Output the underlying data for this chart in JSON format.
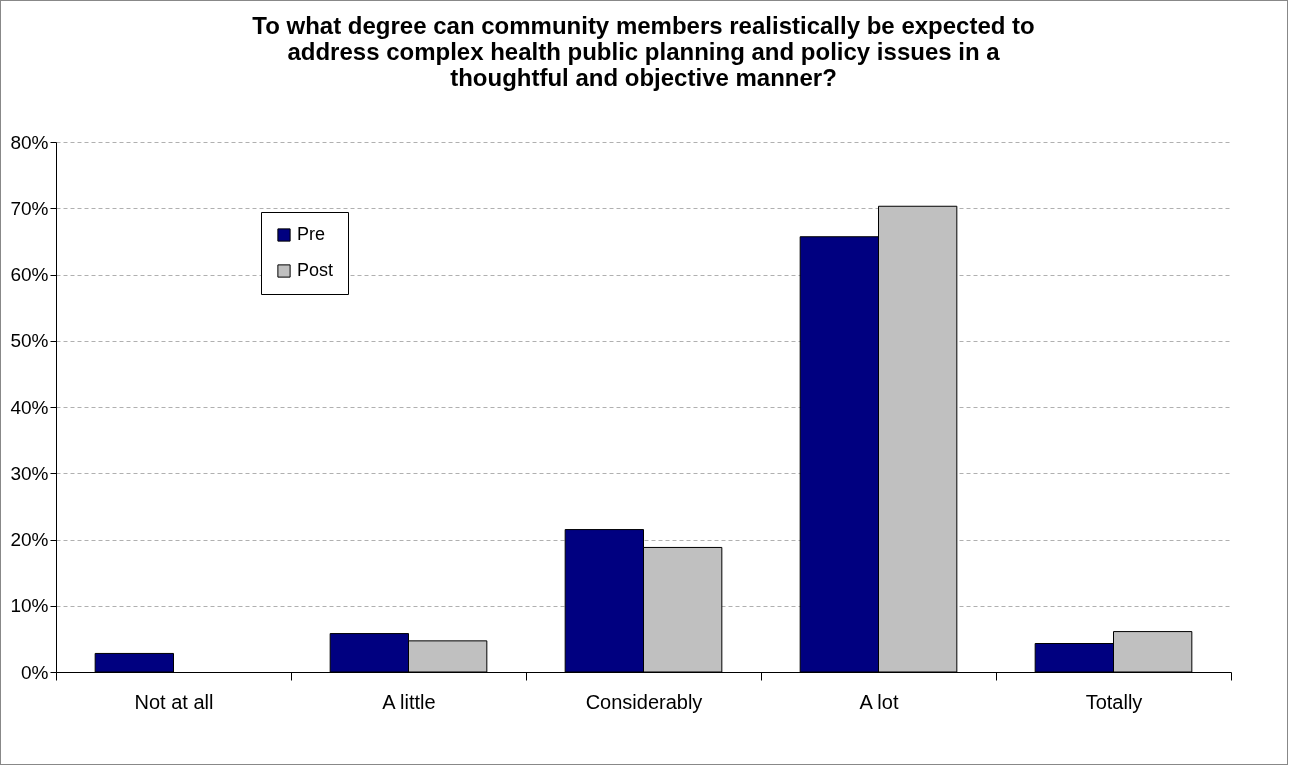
{
  "chart_data": {
    "type": "bar",
    "title": "To what degree can community members realistically be expected to address complex health public planning and policy issues in a thoughtful and objective manner?",
    "categories": [
      "Not at all",
      "A little",
      "Considerably",
      "A lot",
      "Totally"
    ],
    "series": [
      {
        "name": "Pre",
        "color": "#000080",
        "values": [
          2.8,
          5.8,
          21.5,
          65.7,
          4.3
        ]
      },
      {
        "name": "Post",
        "color": "#c0c0c0",
        "values": [
          null,
          4.7,
          18.8,
          70.3,
          6.1
        ]
      }
    ],
    "ylim": [
      0,
      80
    ],
    "yticks": [
      {
        "value": 0,
        "label": "0%"
      },
      {
        "value": 10,
        "label": "10%"
      },
      {
        "value": 20,
        "label": "20%"
      },
      {
        "value": 30,
        "label": "30%"
      },
      {
        "value": 40,
        "label": "40%"
      },
      {
        "value": 50,
        "label": "50%"
      },
      {
        "value": 60,
        "label": "60%"
      },
      {
        "value": 70,
        "label": "70%"
      },
      {
        "value": 80,
        "label": "80%"
      }
    ],
    "grid": "y",
    "legend": "top left"
  }
}
